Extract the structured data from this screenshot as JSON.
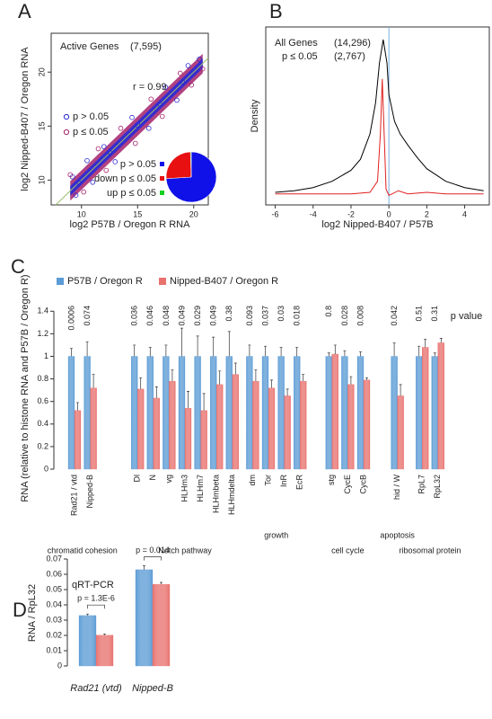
{
  "chart_data": [
    {
      "type": "scatter",
      "panel": "A",
      "title": "Active Genes",
      "subtitle": "(7,595)",
      "annotation": "r = 0.99",
      "xlabel": "log2 P57B / Oregon R RNA",
      "ylabel": "log2 Nipped-B407 / Oregon RNA",
      "xlim": [
        7.3,
        21.3
      ],
      "ylim": [
        7.7,
        23.6
      ],
      "xticks": [
        10,
        15,
        20
      ],
      "yticks": [
        10,
        15,
        20
      ],
      "series": [
        {
          "name": "p > 0.05",
          "color": "#2a2ad6",
          "x": [
            9.2,
            9.5,
            10.5,
            11,
            12,
            13,
            14.5,
            16,
            17.5,
            18.5,
            19.5,
            20.5,
            9.8,
            12.5,
            15,
            17,
            19
          ],
          "values": [
            10.3,
            8.6,
            11.8,
            9.8,
            13.1,
            11.7,
            15.8,
            14.8,
            18.6,
            17.4,
            20.6,
            21.2,
            9.7,
            12.6,
            15.1,
            17.0,
            19.1
          ]
        },
        {
          "name": "p ≤ 0.05",
          "color": "#a3216b",
          "x": [
            9.0,
            10.2,
            11.5,
            12.2,
            13.5,
            14.8,
            16.2,
            17.2,
            18.8,
            19.8,
            20.8
          ],
          "values": [
            10.5,
            8.9,
            12.9,
            10.9,
            14.8,
            13.4,
            17.5,
            15.9,
            19.9,
            18.8,
            20.3
          ]
        }
      ],
      "inset": {
        "type": "pie",
        "categories": [
          "p > 0.05",
          "down p ≤ 0.05",
          "up p ≤ 0.05"
        ],
        "values": [
          74,
          25.5,
          0.5
        ],
        "colors": [
          "#1010e8",
          "#e81010",
          "#10d020"
        ]
      }
    },
    {
      "type": "line",
      "panel": "B",
      "xlabel": "log2 Nipped-B407 / P57B",
      "ylabel": "Density",
      "xlim": [
        -6.5,
        5.3
      ],
      "ylim": [
        -0.05,
        1.08
      ],
      "xticks": [
        -6,
        -4,
        -2,
        0,
        2,
        4
      ],
      "reference_line": 0,
      "reference_color": "#7ab0e0",
      "series": [
        {
          "name": "All Genes",
          "count_label": "(14,296)",
          "color": "#000000",
          "x": [
            -6,
            -5,
            -4,
            -3,
            -2,
            -1.5,
            -1,
            -0.7,
            -0.5,
            -0.3,
            -0.1,
            0,
            0.3,
            0.6,
            1,
            1.5,
            2,
            3,
            4,
            5
          ],
          "values": [
            0.03,
            0.04,
            0.06,
            0.1,
            0.17,
            0.24,
            0.4,
            0.6,
            0.85,
            1.0,
            0.85,
            0.65,
            0.48,
            0.4,
            0.33,
            0.25,
            0.18,
            0.1,
            0.06,
            0.04
          ]
        },
        {
          "name": "p ≤ 0.05",
          "count_label": "(2,767)",
          "color": "#e02020",
          "x": [
            -6,
            -2,
            -1,
            -0.6,
            -0.45,
            -0.35,
            -0.25,
            -0.15,
            0,
            0.5,
            1,
            2,
            3,
            5
          ],
          "values": [
            0.02,
            0.02,
            0.03,
            0.1,
            0.4,
            0.75,
            0.4,
            0.05,
            0.01,
            0.04,
            0.02,
            0.03,
            0.02,
            0.02
          ]
        }
      ]
    },
    {
      "type": "grouped_bar",
      "panel": "C",
      "ylabel": "RNA (relative to histone RNA and P57B / Oregon R)",
      "ylim": [
        0,
        1.45
      ],
      "yticks": [
        0,
        0.2,
        0.4,
        0.6,
        0.8,
        1,
        1.2,
        1.4
      ],
      "categories": [
        "Rad21 / vtd",
        "Nipped-B",
        "Dl",
        "N",
        "vg",
        "HLHm3",
        "HLHm7",
        "HLHmbeta",
        "HLHmdelta",
        "dm",
        "Tor",
        "InR",
        "EcR",
        "stg",
        "CycE",
        "CycB",
        "hid / W",
        "RpL7",
        "RpL32"
      ],
      "annotation_title": "p value",
      "annotations": [
        "0.0006",
        "0.074",
        "0.036",
        "0.046",
        "0.048",
        "0.049",
        "0.029",
        "0.049",
        "0.38",
        "0.093",
        "0.037",
        "0.03",
        "0.018",
        "0.8",
        "0.028",
        "0.008",
        "0.042",
        "0.51",
        "0.31"
      ],
      "groups": [
        {
          "label": "chromatid cohesion",
          "members": [
            "Rad21 / vtd",
            "Nipped-B"
          ]
        },
        {
          "label": "Notch pathway",
          "members": [
            "Dl",
            "N",
            "vg",
            "HLHm3",
            "HLHm7",
            "HLHmbeta",
            "HLHmdelta"
          ]
        },
        {
          "label": "growth",
          "members": [
            "dm",
            "Tor",
            "InR",
            "EcR"
          ]
        },
        {
          "label": "cell cycle",
          "members": [
            "stg",
            "CycE",
            "CycB"
          ]
        },
        {
          "label": "apoptosis",
          "members": [
            "hid / W"
          ]
        },
        {
          "label": "ribosomal protein",
          "members": [
            "RpL7",
            "RpL32"
          ]
        }
      ],
      "series": [
        {
          "name": "P57B / Oregon R",
          "color": "#5b9bd5",
          "values": [
            1,
            1,
            1,
            1,
            1,
            1,
            1,
            1,
            1,
            1,
            1,
            1,
            1,
            1,
            1,
            1,
            1,
            1,
            1
          ],
          "errors": [
            0.07,
            0.13,
            0.1,
            0.08,
            0.1,
            0.25,
            0.18,
            0.17,
            0.22,
            0.1,
            0.09,
            0.08,
            0.08,
            0.03,
            0.05,
            0.04,
            0.12,
            0.09,
            0.03
          ]
        },
        {
          "name": "Nipped-B407 / Oregon R",
          "color": "#e8716e",
          "values": [
            0.52,
            0.72,
            0.71,
            0.63,
            0.78,
            0.54,
            0.52,
            0.75,
            0.84,
            0.78,
            0.72,
            0.65,
            0.78,
            1.02,
            0.75,
            0.79,
            0.65,
            1.08,
            1.12
          ],
          "errors": [
            0.07,
            0.12,
            0.1,
            0.1,
            0.1,
            0.15,
            0.15,
            0.12,
            0.1,
            0.1,
            0.07,
            0.06,
            0.06,
            0.08,
            0.07,
            0.02,
            0.1,
            0.07,
            0.04
          ]
        }
      ]
    },
    {
      "type": "grouped_bar",
      "panel": "D",
      "title": "qRT-PCR",
      "ylabel": "RNA / RpL32",
      "ylim": [
        0,
        0.07
      ],
      "yticks": [
        0,
        0.01,
        0.02,
        0.03,
        0.04,
        0.05,
        0.06,
        0.07
      ],
      "categories": [
        "Rad21 (vtd)",
        "Nipped-B"
      ],
      "annotations": [
        "p = 1.3E-6",
        "p = 0.014"
      ],
      "series": [
        {
          "color": "#5b9bd5",
          "values": [
            0.033,
            0.063
          ],
          "errors": [
            0.001,
            0.0025
          ]
        },
        {
          "color": "#e8716e",
          "values": [
            0.0202,
            0.0535
          ],
          "errors": [
            0.0008,
            0.0012
          ]
        }
      ]
    }
  ]
}
